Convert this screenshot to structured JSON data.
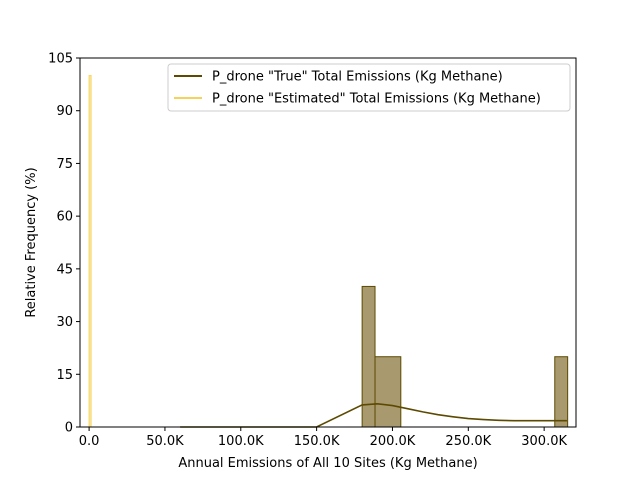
{
  "chart_data": {
    "type": "histogram",
    "title": "",
    "xlabel": "Annual Emissions of All 10 Sites (Kg Methane)",
    "ylabel": "Relative Frequency (%)",
    "xlim": [
      -6000,
      321000
    ],
    "ylim": [
      0,
      105
    ],
    "xticks": [
      0,
      50000,
      100000,
      150000,
      200000,
      250000,
      300000
    ],
    "xtick_labels": [
      "0.0",
      "50.0K",
      "100.0K",
      "150.0K",
      "200.0K",
      "250.0K",
      "300.0K"
    ],
    "yticks": [
      0,
      15,
      30,
      45,
      60,
      75,
      90,
      105
    ],
    "ytick_labels": [
      "0",
      "15",
      "30",
      "45",
      "60",
      "75",
      "90",
      "105"
    ],
    "grid": false,
    "legend_position": "top-right",
    "series": [
      {
        "name": "P_drone \"True\" Total Emissions (Kg Methane)",
        "edge_color": "#5c4a00",
        "fill_color": "#a89a6e",
        "bins": [
          {
            "x0": 180000,
            "x1": 188500,
            "value": 40
          },
          {
            "x0": 188500,
            "x1": 205500,
            "value": 20
          },
          {
            "x0": 307000,
            "x1": 315500,
            "value": 20
          }
        ],
        "kde": [
          [
            60000,
            0
          ],
          [
            150000,
            0
          ],
          [
            180000,
            6.3
          ],
          [
            190000,
            6.6
          ],
          [
            200000,
            6.1
          ],
          [
            210000,
            5.2
          ],
          [
            220000,
            4.3
          ],
          [
            230000,
            3.5
          ],
          [
            240000,
            2.9
          ],
          [
            250000,
            2.4
          ],
          [
            260000,
            2.1
          ],
          [
            270000,
            1.9
          ],
          [
            280000,
            1.8
          ],
          [
            290000,
            1.8
          ],
          [
            300000,
            1.8
          ],
          [
            310000,
            1.8
          ],
          [
            315000,
            1.8
          ]
        ]
      },
      {
        "name": "P_drone \"Estimated\" Total Emissions (Kg Methane)",
        "edge_color": "#f5d35a",
        "fill_color": "#fbeeb0",
        "bins": [
          {
            "x0": 0,
            "x1": 1300,
            "value": 100
          }
        ]
      }
    ]
  }
}
